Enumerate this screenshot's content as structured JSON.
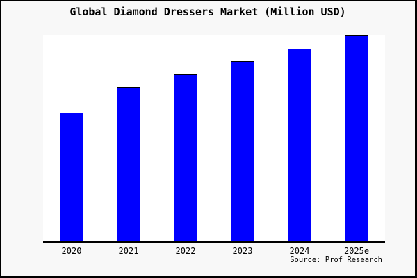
{
  "window": {
    "background": "#f8f8f8",
    "border_color": "#000000"
  },
  "chart": {
    "title": "Global Diamond Dressers Market (Million USD)",
    "source_text": "Source: Prof Research",
    "plot_background": "#ffffff",
    "axis_color": "#000000",
    "bar_color": "#0000ff",
    "bar_border_color": "#000000",
    "text_color": "#000000"
  },
  "chart_data": {
    "type": "bar",
    "title": "Global Diamond Dressers Market (Million USD)",
    "categories": [
      "2020",
      "2021",
      "2022",
      "2023",
      "2024",
      "2025e"
    ],
    "values": [
      100,
      120,
      130,
      140,
      150,
      160
    ],
    "xlabel": "",
    "ylabel": "",
    "ylim": [
      0,
      160
    ],
    "grid": false,
    "legend": false,
    "y_axis_shown": false,
    "annotations": [
      "Source: Prof Research"
    ]
  }
}
